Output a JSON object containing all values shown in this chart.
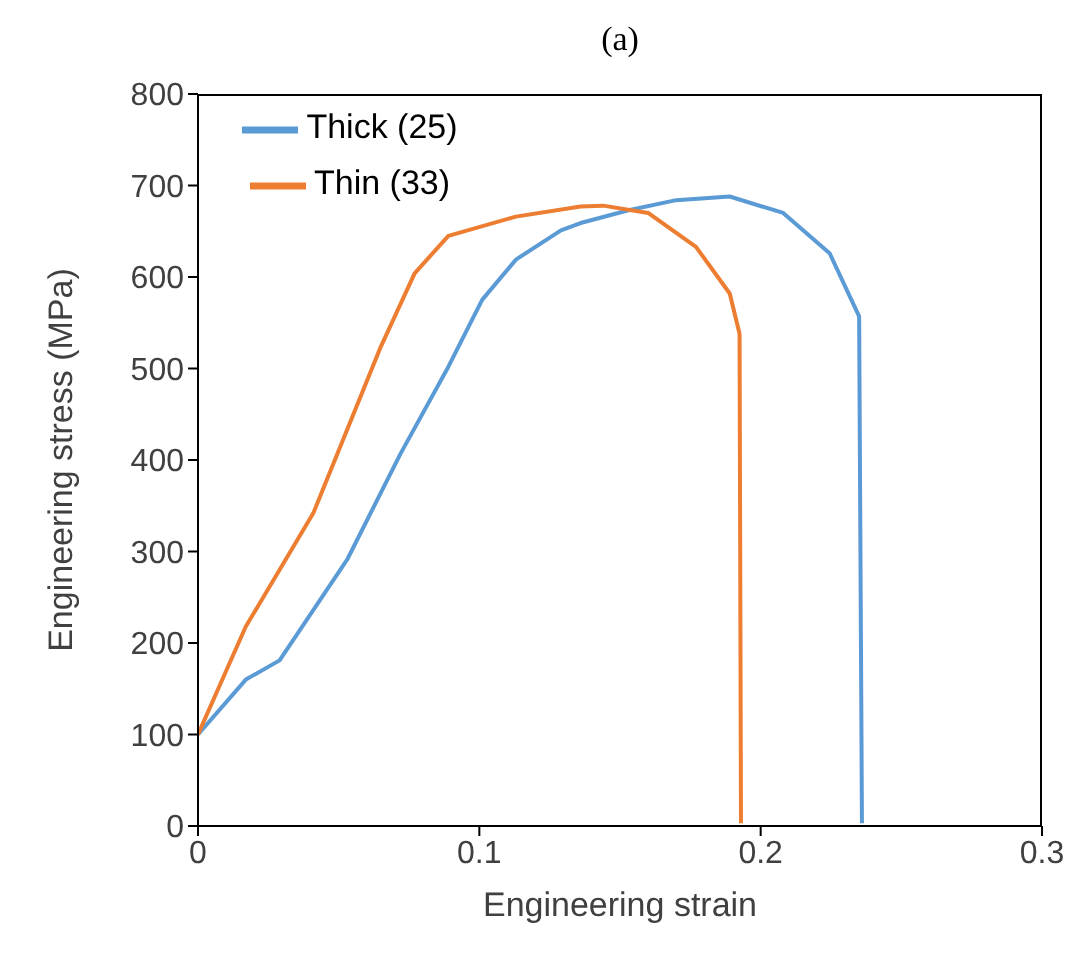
{
  "chart_data": {
    "type": "line",
    "title": "(a)",
    "xlabel": "Engineering strain",
    "ylabel": "Engineering stress (MPa)",
    "xlim": [
      0,
      0.3
    ],
    "xticks": [
      0,
      0.1,
      0.2,
      0.3
    ],
    "ylim": [
      0,
      800
    ],
    "yticks": [
      0,
      100,
      200,
      300,
      400,
      500,
      600,
      700,
      800
    ],
    "grid": false,
    "legend": "top left",
    "marker": "none",
    "line_style": "solid",
    "series": [
      {
        "name": "Thick (25)",
        "color": "#5b9bd5",
        "x": [
          0,
          0.017,
          0.029,
          0.053,
          0.072,
          0.089,
          0.101,
          0.113,
          0.129,
          0.136,
          0.153,
          0.17,
          0.189,
          0.208,
          0.2245,
          0.235,
          0.236
        ],
        "values": [
          100,
          160,
          181,
          291,
          407,
          502,
          575,
          619,
          651,
          659,
          673,
          684,
          688,
          670,
          626,
          557,
          3
        ]
      },
      {
        "name": "Thin (33)",
        "color": "#ed7d31",
        "x": [
          0,
          0.017,
          0.041,
          0.065,
          0.077,
          0.089,
          0.113,
          0.136,
          0.144,
          0.16,
          0.177,
          0.189,
          0.1925,
          0.193
        ],
        "values": [
          100,
          218,
          342,
          524,
          604,
          645,
          666,
          677,
          678,
          670,
          633,
          582,
          538,
          3
        ]
      }
    ]
  }
}
